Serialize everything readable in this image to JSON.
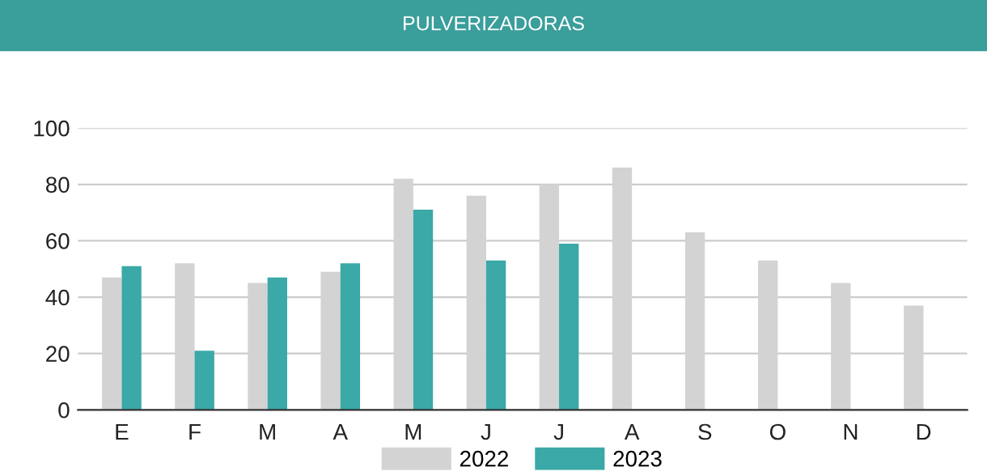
{
  "chart_data": {
    "type": "bar",
    "title": "PULVERIZADORAS",
    "categories": [
      "E",
      "F",
      "M",
      "A",
      "M",
      "J",
      "J",
      "A",
      "S",
      "O",
      "N",
      "D"
    ],
    "series": [
      {
        "name": "2022",
        "color": "#d3d3d3",
        "values": [
          47,
          52,
          45,
          49,
          82,
          76,
          80,
          86,
          63,
          53,
          45,
          37
        ]
      },
      {
        "name": "2023",
        "color": "#3aa9a7",
        "values": [
          51,
          21,
          47,
          52,
          71,
          53,
          59,
          null,
          null,
          null,
          null,
          null
        ]
      }
    ],
    "ylim": [
      0,
      100
    ],
    "yticks": [
      0,
      20,
      40,
      60,
      80,
      100
    ],
    "grid": "y",
    "legend": "bottom"
  }
}
